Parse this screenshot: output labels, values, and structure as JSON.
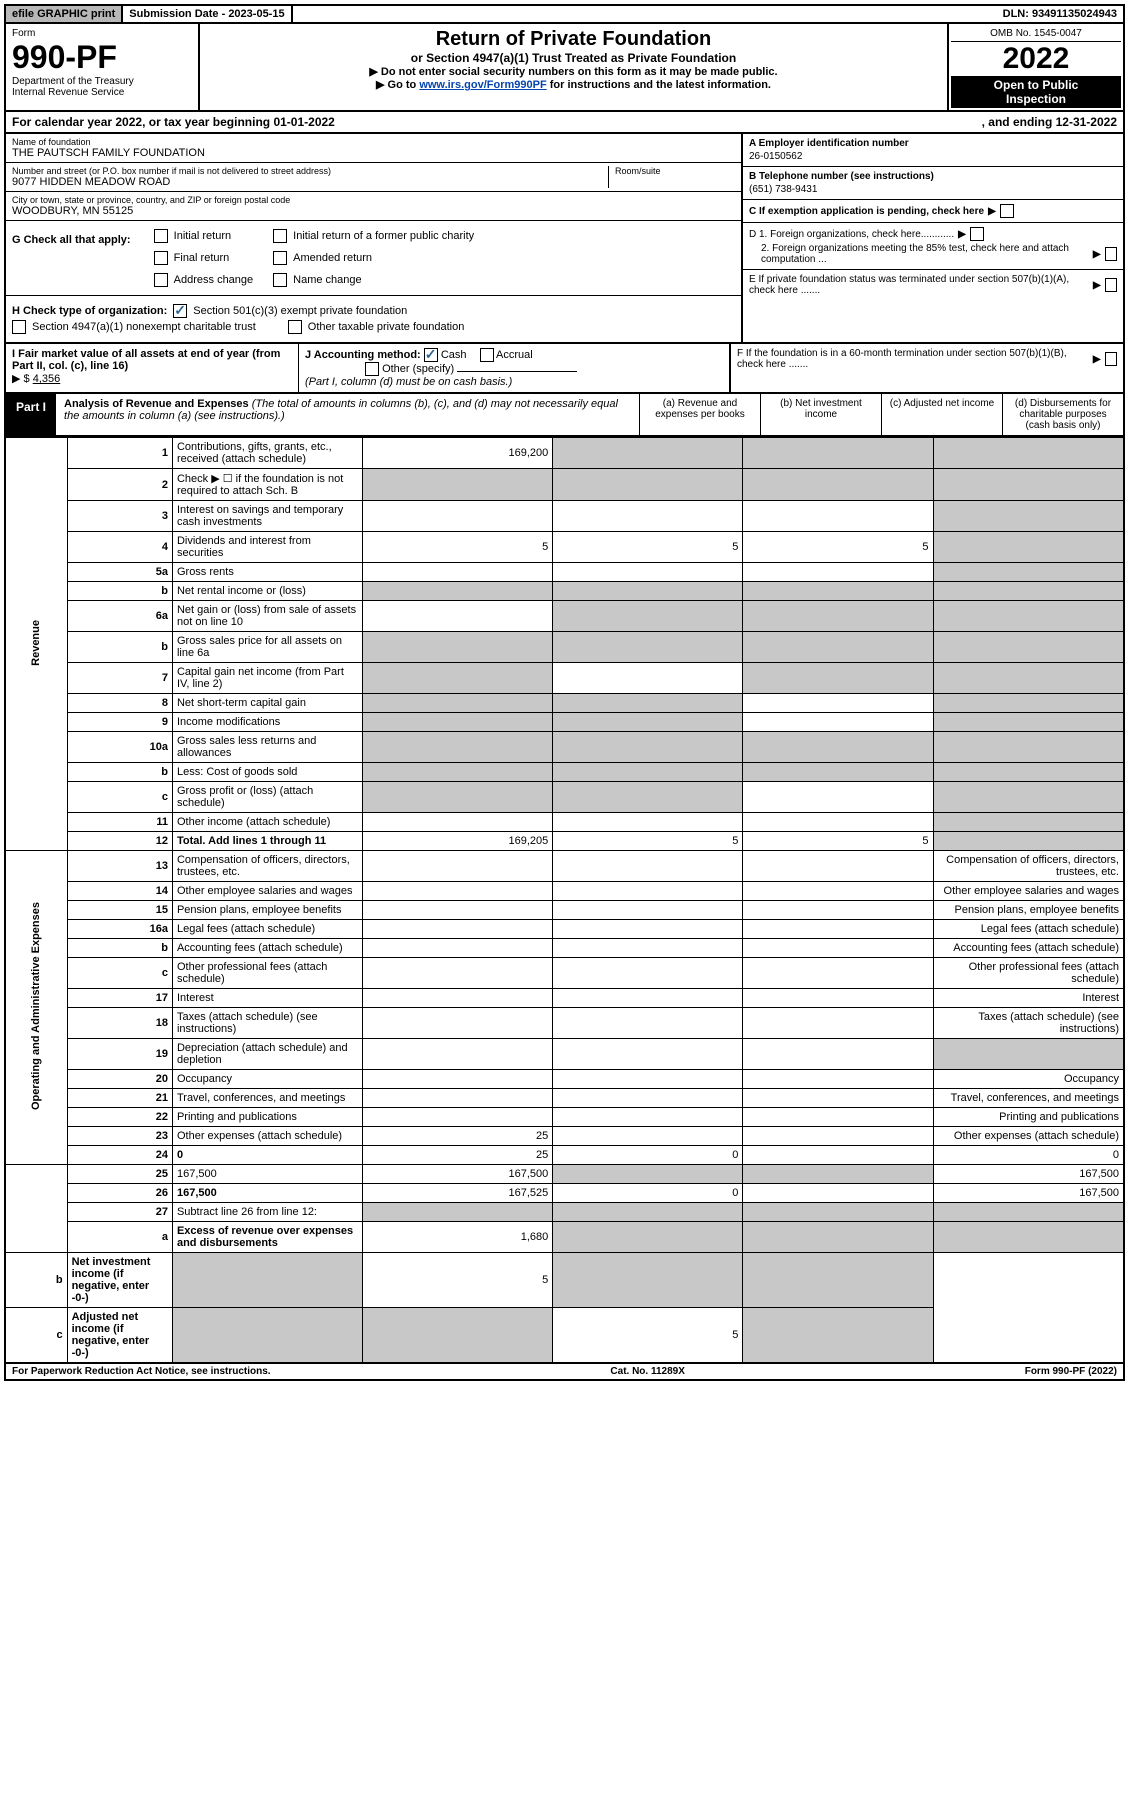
{
  "topbar": {
    "efile": "efile GRAPHIC print",
    "subdate": "Submission Date - 2023-05-15",
    "dln": "DLN: 93491135024943"
  },
  "header": {
    "form_label": "Form",
    "form_number": "990-PF",
    "dept1": "Department of the Treasury",
    "dept2": "Internal Revenue Service",
    "title": "Return of Private Foundation",
    "subtitle": "or Section 4947(a)(1) Trust Treated as Private Foundation",
    "note1": "▶ Do not enter social security numbers on this form as it may be made public.",
    "note2_pre": "▶ Go to ",
    "note2_link": "www.irs.gov/Form990PF",
    "note2_post": " for instructions and the latest information.",
    "omb": "OMB No. 1545-0047",
    "year": "2022",
    "open1": "Open to Public",
    "open2": "Inspection"
  },
  "calyear": {
    "pre": "For calendar year 2022, or tax year beginning ",
    "begin": "01-01-2022",
    "mid": " , and ending ",
    "end": "12-31-2022"
  },
  "entity": {
    "name_label": "Name of foundation",
    "name": "THE PAUTSCH FAMILY FOUNDATION",
    "addr_label": "Number and street (or P.O. box number if mail is not delivered to street address)",
    "addr": "9077 HIDDEN MEADOW ROAD",
    "room_label": "Room/suite",
    "room": "",
    "city_label": "City or town, state or province, country, and ZIP or foreign postal code",
    "city": "WOODBURY, MN  55125",
    "ein_label": "A Employer identification number",
    "ein": "26-0150562",
    "phone_label": "B Telephone number (see instructions)",
    "phone": "(651) 738-9431",
    "c_label": "C If exemption application is pending, check here",
    "d1": "D 1. Foreign organizations, check here............",
    "d2": "2. Foreign organizations meeting the 85% test, check here and attach computation ...",
    "e_label": "E  If private foundation status was terminated under section 507(b)(1)(A), check here .......",
    "f_label": "F  If the foundation is in a 60-month termination under section 507(b)(1)(B), check here ......."
  },
  "g": {
    "label": "G Check all that apply:",
    "opts": [
      "Initial return",
      "Final return",
      "Address change",
      "Initial return of a former public charity",
      "Amended return",
      "Name change"
    ]
  },
  "h": {
    "label": "H Check type of organization:",
    "opt1": "Section 501(c)(3) exempt private foundation",
    "opt2": "Section 4947(a)(1) nonexempt charitable trust",
    "opt3": "Other taxable private foundation"
  },
  "i": {
    "label": "I Fair market value of all assets at end of year (from Part II, col. (c), line 16)",
    "arrow": "▶ $",
    "val": "4,356"
  },
  "j": {
    "label": "J Accounting method:",
    "cash": "Cash",
    "accrual": "Accrual",
    "other": "Other (specify)",
    "note": "(Part I, column (d) must be on cash basis.)"
  },
  "part1": {
    "tab": "Part I",
    "title": "Analysis of Revenue and Expenses",
    "title_note": "(The total of amounts in columns (b), (c), and (d) may not necessarily equal the amounts in column (a) (see instructions).)",
    "col_a": "(a) Revenue and expenses per books",
    "col_b": "(b) Net investment income",
    "col_c": "(c) Adjusted net income",
    "col_d": "(d) Disbursements for charitable purposes (cash basis only)"
  },
  "vlabels": {
    "revenue": "Revenue",
    "expenses": "Operating and Administrative Expenses"
  },
  "rows": [
    {
      "n": "1",
      "d": "Contributions, gifts, grants, etc., received (attach schedule)",
      "a": "169,200",
      "b": "",
      "c": "",
      "bsh": true,
      "csh": true,
      "dsh": true
    },
    {
      "n": "2",
      "d": "Check ▶ ☐ if the foundation is not required to attach Sch. B",
      "a": "",
      "b": "",
      "c": "",
      "ash": true,
      "bsh": true,
      "csh": true,
      "dsh": true
    },
    {
      "n": "3",
      "d": "Interest on savings and temporary cash investments",
      "a": "",
      "b": "",
      "c": "",
      "dsh": true
    },
    {
      "n": "4",
      "d": "Dividends and interest from securities",
      "a": "5",
      "b": "5",
      "c": "5",
      "dsh": true
    },
    {
      "n": "5a",
      "d": "Gross rents",
      "a": "",
      "b": "",
      "c": "",
      "dsh": true
    },
    {
      "n": "b",
      "d": "Net rental income or (loss)",
      "a": "",
      "b": "",
      "c": "",
      "ash": true,
      "bsh": true,
      "csh": true,
      "dsh": true
    },
    {
      "n": "6a",
      "d": "Net gain or (loss) from sale of assets not on line 10",
      "a": "",
      "b": "",
      "c": "",
      "bsh": true,
      "csh": true,
      "dsh": true
    },
    {
      "n": "b",
      "d": "Gross sales price for all assets on line 6a",
      "a": "",
      "b": "",
      "c": "",
      "ash": true,
      "bsh": true,
      "csh": true,
      "dsh": true
    },
    {
      "n": "7",
      "d": "Capital gain net income (from Part IV, line 2)",
      "a": "",
      "b": "",
      "c": "",
      "ash": true,
      "csh": true,
      "dsh": true
    },
    {
      "n": "8",
      "d": "Net short-term capital gain",
      "a": "",
      "b": "",
      "c": "",
      "ash": true,
      "bsh": true,
      "dsh": true
    },
    {
      "n": "9",
      "d": "Income modifications",
      "a": "",
      "b": "",
      "c": "",
      "ash": true,
      "bsh": true,
      "dsh": true
    },
    {
      "n": "10a",
      "d": "Gross sales less returns and allowances",
      "a": "",
      "b": "",
      "c": "",
      "ash": true,
      "bsh": true,
      "csh": true,
      "dsh": true
    },
    {
      "n": "b",
      "d": "Less: Cost of goods sold",
      "a": "",
      "b": "",
      "c": "",
      "ash": true,
      "bsh": true,
      "csh": true,
      "dsh": true
    },
    {
      "n": "c",
      "d": "Gross profit or (loss) (attach schedule)",
      "a": "",
      "b": "",
      "c": "",
      "ash": true,
      "bsh": true,
      "dsh": true
    },
    {
      "n": "11",
      "d": "Other income (attach schedule)",
      "a": "",
      "b": "",
      "c": "",
      "dsh": true
    },
    {
      "n": "12",
      "d": "Total. Add lines 1 through 11",
      "bold": true,
      "a": "169,205",
      "b": "5",
      "c": "5",
      "dsh": true
    },
    {
      "n": "13",
      "d": "Compensation of officers, directors, trustees, etc.",
      "a": "",
      "b": "",
      "c": ""
    },
    {
      "n": "14",
      "d": "Other employee salaries and wages",
      "a": "",
      "b": "",
      "c": ""
    },
    {
      "n": "15",
      "d": "Pension plans, employee benefits",
      "a": "",
      "b": "",
      "c": ""
    },
    {
      "n": "16a",
      "d": "Legal fees (attach schedule)",
      "a": "",
      "b": "",
      "c": ""
    },
    {
      "n": "b",
      "d": "Accounting fees (attach schedule)",
      "a": "",
      "b": "",
      "c": ""
    },
    {
      "n": "c",
      "d": "Other professional fees (attach schedule)",
      "a": "",
      "b": "",
      "c": ""
    },
    {
      "n": "17",
      "d": "Interest",
      "a": "",
      "b": "",
      "c": ""
    },
    {
      "n": "18",
      "d": "Taxes (attach schedule) (see instructions)",
      "a": "",
      "b": "",
      "c": ""
    },
    {
      "n": "19",
      "d": "Depreciation (attach schedule) and depletion",
      "a": "",
      "b": "",
      "c": "",
      "dsh": true
    },
    {
      "n": "20",
      "d": "Occupancy",
      "a": "",
      "b": "",
      "c": ""
    },
    {
      "n": "21",
      "d": "Travel, conferences, and meetings",
      "a": "",
      "b": "",
      "c": ""
    },
    {
      "n": "22",
      "d": "Printing and publications",
      "a": "",
      "b": "",
      "c": ""
    },
    {
      "n": "23",
      "d": "Other expenses (attach schedule)",
      "a": "25",
      "b": "",
      "c": ""
    },
    {
      "n": "24",
      "d": "0",
      "bold": true,
      "a": "25",
      "b": "0",
      "c": ""
    },
    {
      "n": "25",
      "d": "167,500",
      "a": "167,500",
      "b": "",
      "c": "",
      "bsh": true,
      "csh": true
    },
    {
      "n": "26",
      "d": "167,500",
      "bold": true,
      "a": "167,525",
      "b": "0",
      "c": ""
    },
    {
      "n": "27",
      "d": "Subtract line 26 from line 12:",
      "a": "",
      "b": "",
      "c": "",
      "ash": true,
      "bsh": true,
      "csh": true,
      "dsh": true
    },
    {
      "n": "a",
      "d": "Excess of revenue over expenses and disbursements",
      "bold": true,
      "a": "1,680",
      "b": "",
      "c": "",
      "bsh": true,
      "csh": true,
      "dsh": true
    },
    {
      "n": "b",
      "d": "Net investment income (if negative, enter -0-)",
      "bold": true,
      "a": "",
      "b": "5",
      "c": "",
      "ash": true,
      "csh": true,
      "dsh": true
    },
    {
      "n": "c",
      "d": "Adjusted net income (if negative, enter -0-)",
      "bold": true,
      "a": "",
      "b": "",
      "c": "5",
      "ash": true,
      "bsh": true,
      "dsh": true
    }
  ],
  "footer": {
    "left": "For Paperwork Reduction Act Notice, see instructions.",
    "mid": "Cat. No. 11289X",
    "right": "Form 990-PF (2022)"
  }
}
